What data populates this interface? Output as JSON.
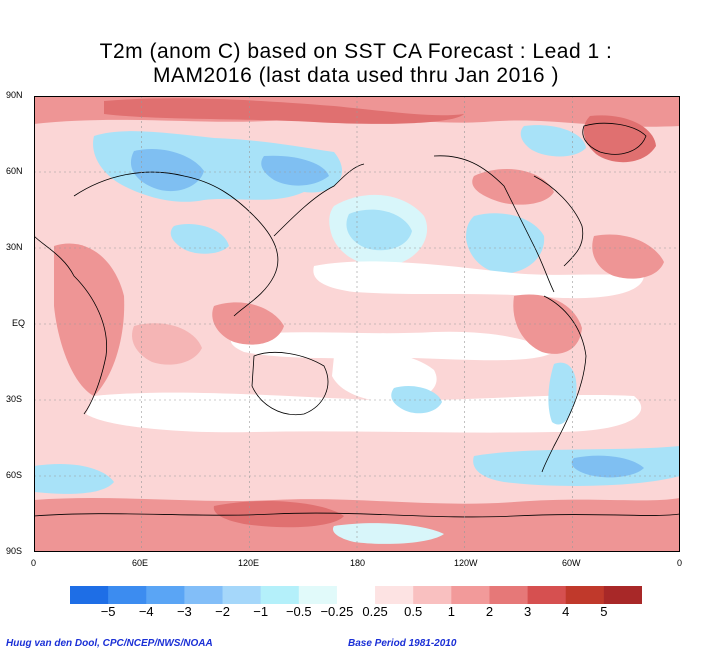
{
  "title": {
    "line1": "T2m (anom C) based on SST CA Forecast : Lead 1 :",
    "line2": "MAM2016 (last data used thru Jan 2016 )"
  },
  "axes": {
    "lat_labels": [
      "90N",
      "60N",
      "30N",
      "EQ",
      "30S",
      "60S",
      "90S"
    ],
    "lon_labels": [
      "0",
      "60E",
      "120E",
      "180",
      "120W",
      "60W",
      "0"
    ]
  },
  "legend": {
    "labels": [
      "−5",
      "−4",
      "−3",
      "−2",
      "−1",
      "−0.5",
      "−0.25",
      "0.25",
      "0.5",
      "1",
      "2",
      "3",
      "4",
      "5"
    ],
    "colors": [
      "#1e6ee6",
      "#3c8cf0",
      "#5aa5f5",
      "#82bef8",
      "#a5d7fa",
      "#b4f0fa",
      "#e1fafa",
      "#ffffff",
      "#fde3e3",
      "#f9c0c0",
      "#f29a9a",
      "#e67878",
      "#d65050",
      "#c0392b",
      "#a82828"
    ]
  },
  "palette": {
    "base_warm": "#fbd6d6",
    "warm1": "#f5b5b5",
    "warm2": "#ee9595",
    "warm3": "#e07070",
    "neutral": "#ffffff",
    "cool1": "#d8f6fa",
    "cool2": "#a8e2f8",
    "cool3": "#7fbff2",
    "cool4": "#5a9fe8",
    "coast": "#000000",
    "grid": "#999999"
  },
  "footer": {
    "credit": "Huug van den Dool, CPC/NCEP/NWS/NOAA",
    "base_period": "Base Period 1981-2010"
  }
}
